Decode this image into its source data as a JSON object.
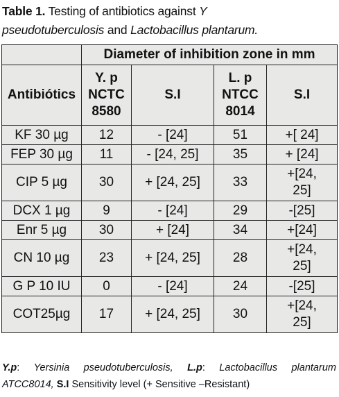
{
  "caption": {
    "label": "Table 1.",
    "text1": " Testing of antibiotics against ",
    "italic1": "Y",
    "italic2": "pseudotuberculosis",
    "text2": " and ",
    "italic3": "Lactobacillus plantarum.",
    "line2_tail": ""
  },
  "table": {
    "group_header": "Diameter of inhibition zone in mm",
    "col_antibiotics": "Antibiótics",
    "col_yp": [
      "Y. p",
      "NCTC",
      "8580"
    ],
    "col_si1": "S.I",
    "col_lp": [
      "L. p",
      "NTCC",
      "8014"
    ],
    "col_si2": "S.I",
    "rows": [
      {
        "name": "KF 30 µg",
        "yp": "12",
        "si1": "- [24]",
        "lp": "51",
        "si2": [
          "+[ 24]"
        ]
      },
      {
        "name": "FEP 30 µg",
        "yp": "11",
        "si1": "- [24, 25]",
        "lp": "35",
        "si2": [
          "+ [24]"
        ]
      },
      {
        "name": "CIP 5 µg",
        "yp": "30",
        "si1": "+ [24, 25]",
        "lp": "33",
        "si2": [
          "+[24,",
          "25]"
        ]
      },
      {
        "name": "DCX 1 µg",
        "yp": "9",
        "si1": "- [24]",
        "lp": "29",
        "si2": [
          "-[25]"
        ]
      },
      {
        "name": "Enr 5 µg",
        "yp": "30",
        "si1": "+ [24]",
        "lp": "34",
        "si2": [
          "+[24]"
        ]
      },
      {
        "name": "CN 10 µg",
        "yp": "23",
        "si1": "+ [24, 25]",
        "lp": "28",
        "si2": [
          "+[24,",
          "25]"
        ]
      },
      {
        "name": "G P 10 IU",
        "yp": "0",
        "si1": "- [24]",
        "lp": "24",
        "si2": [
          "-[25]"
        ]
      },
      {
        "name": "COT25µg",
        "yp": "17",
        "si1": "+ [24, 25]",
        "lp": "30",
        "si2": [
          "+[24,",
          "25]"
        ]
      }
    ]
  },
  "footnote": {
    "yp_abbr": "Y.p",
    "yp_full": "Yersinia",
    "yp_full2": "pseudotuberculosis,",
    "lp_abbr": "L.p",
    "lp_full": "Lactobacillus",
    "lp_full2": "plantarum",
    "line2_strain": "ATCC8014,",
    "si_abbr": "S.I",
    "si_text": " Sensitivity level (+ Sensitive –Resistant)"
  }
}
